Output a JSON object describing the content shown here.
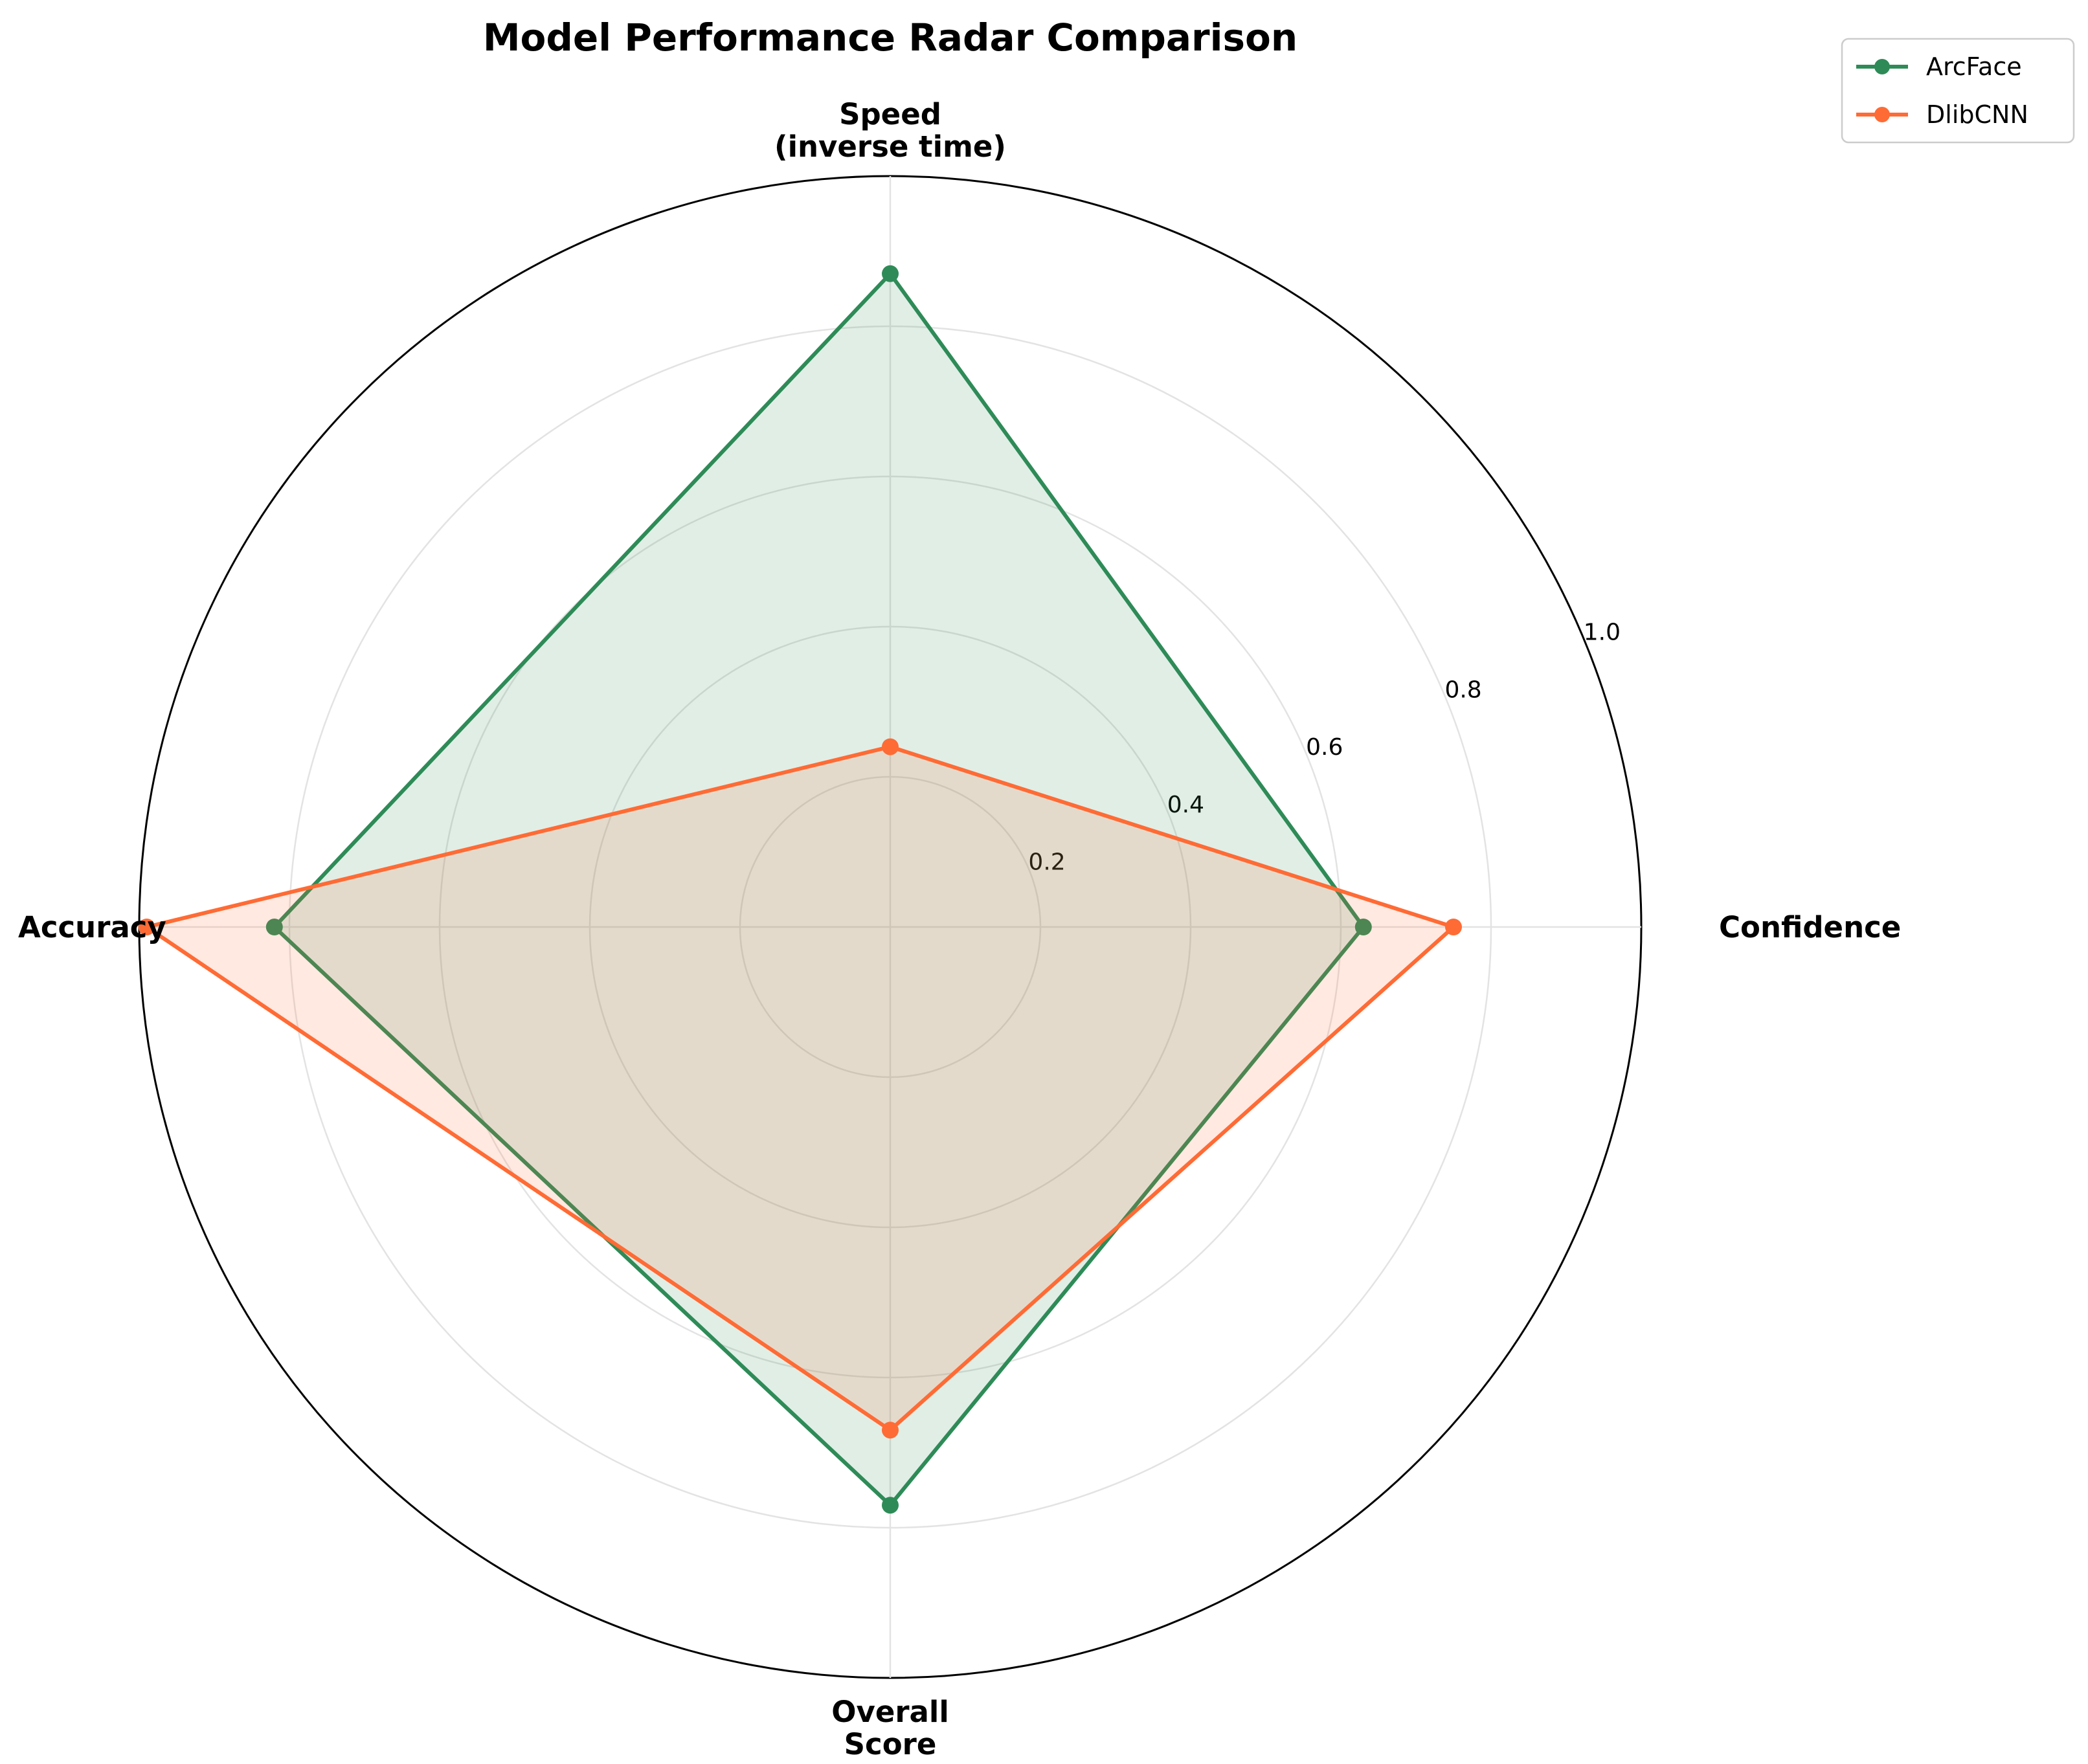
{
  "chart_data": {
    "type": "radar",
    "title": "Model Performance Radar Comparison",
    "axes": [
      {
        "label_lines": [
          "Speed",
          "(inverse time)"
        ]
      },
      {
        "label_lines": [
          "Confidence"
        ]
      },
      {
        "label_lines": [
          "Overall",
          "Score"
        ]
      },
      {
        "label_lines": [
          "Accuracy"
        ]
      }
    ],
    "rlim": [
      0,
      1.0
    ],
    "rticks": [
      0.2,
      0.4,
      0.6,
      0.8,
      1.0
    ],
    "rtick_labels": [
      "0.2",
      "0.4",
      "0.6",
      "0.8",
      "1.0"
    ],
    "grid": true,
    "legend_position": "top-right",
    "series": [
      {
        "name": "ArcFace",
        "color": "#2e8b57",
        "values": [
          0.87,
          0.63,
          0.77,
          0.82
        ]
      },
      {
        "name": "DlibCNN",
        "color": "#ff6b35",
        "values": [
          0.24,
          0.75,
          0.67,
          0.99
        ]
      }
    ]
  }
}
